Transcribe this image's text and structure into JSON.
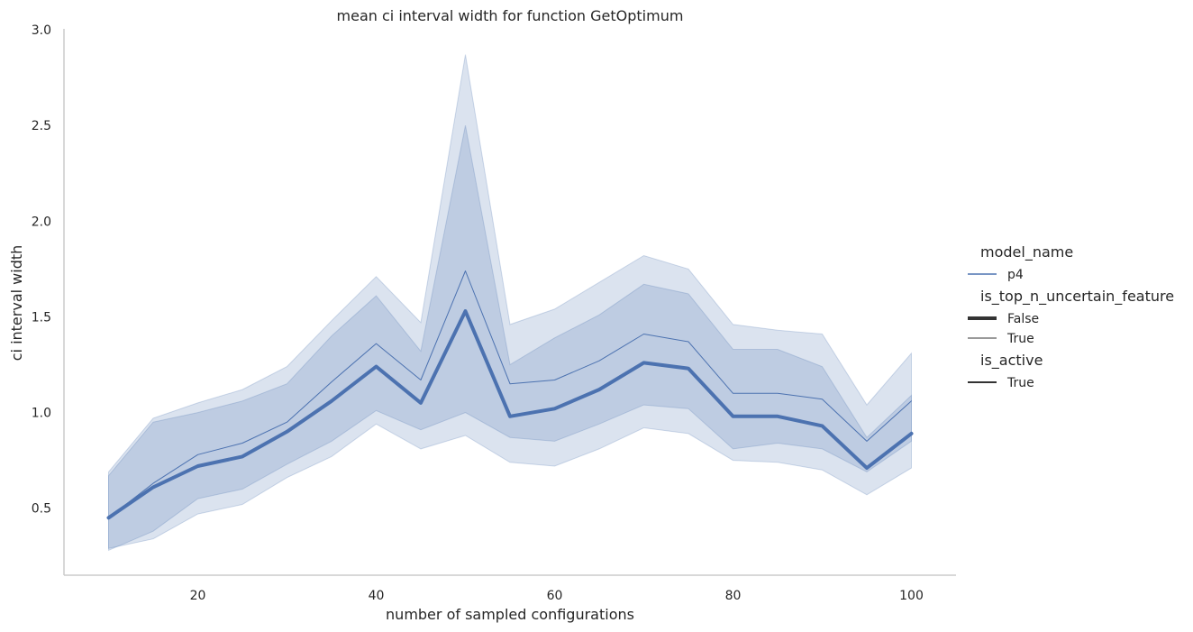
{
  "chart_data": {
    "type": "line",
    "title": "mean ci interval width for function GetOptimum",
    "xlabel": "number of sampled configurations",
    "ylabel": "ci interval width",
    "xlim": [
      5,
      105
    ],
    "ylim": [
      0.15,
      3.0
    ],
    "xticks": [
      20,
      40,
      60,
      80,
      100
    ],
    "yticks": [
      0.5,
      1.0,
      1.5,
      2.0,
      2.5,
      3.0
    ],
    "grid": false,
    "legend_position": "right",
    "colors": {
      "series": "#4c72b0",
      "axis": "#cccccc",
      "text": "#262626"
    },
    "legend": [
      {
        "title": "model_name",
        "entries": [
          {
            "label": "p4",
            "style": "p4"
          }
        ]
      },
      {
        "title": "is_top_n_uncertain_feature",
        "entries": [
          {
            "label": "False",
            "style": "thick"
          },
          {
            "label": "True",
            "style": "thin"
          }
        ]
      },
      {
        "title": "is_active",
        "entries": [
          {
            "label": "True",
            "style": "solid"
          }
        ]
      }
    ],
    "x": [
      10,
      15,
      20,
      25,
      30,
      35,
      40,
      45,
      50,
      55,
      60,
      65,
      70,
      75,
      80,
      85,
      90,
      95,
      100
    ],
    "series": [
      {
        "name": "False",
        "values": [
          0.45,
          0.61,
          0.72,
          0.77,
          0.9,
          1.06,
          1.24,
          1.05,
          1.53,
          0.98,
          1.02,
          1.12,
          1.26,
          1.23,
          0.98,
          0.98,
          0.93,
          0.71,
          0.89
        ],
        "lower": [
          0.29,
          0.34,
          0.47,
          0.52,
          0.66,
          0.77,
          0.94,
          0.81,
          0.88,
          0.74,
          0.72,
          0.81,
          0.92,
          0.89,
          0.75,
          0.74,
          0.7,
          0.57,
          0.71
        ],
        "upper": [
          0.69,
          0.97,
          1.05,
          1.12,
          1.24,
          1.48,
          1.71,
          1.47,
          2.87,
          1.46,
          1.54,
          1.68,
          1.82,
          1.75,
          1.46,
          1.43,
          1.41,
          1.04,
          1.31
        ]
      },
      {
        "name": "True",
        "values": [
          0.45,
          0.63,
          0.78,
          0.84,
          0.95,
          1.16,
          1.36,
          1.17,
          1.74,
          1.15,
          1.17,
          1.27,
          1.41,
          1.37,
          1.1,
          1.1,
          1.07,
          0.85,
          1.06
        ],
        "lower": [
          0.28,
          0.38,
          0.55,
          0.6,
          0.73,
          0.85,
          1.01,
          0.91,
          1.0,
          0.87,
          0.85,
          0.94,
          1.04,
          1.02,
          0.81,
          0.84,
          0.81,
          0.69,
          0.85
        ],
        "upper": [
          0.67,
          0.95,
          1.0,
          1.06,
          1.15,
          1.4,
          1.61,
          1.32,
          2.5,
          1.25,
          1.39,
          1.51,
          1.67,
          1.62,
          1.33,
          1.33,
          1.24,
          0.87,
          1.09
        ]
      }
    ]
  }
}
